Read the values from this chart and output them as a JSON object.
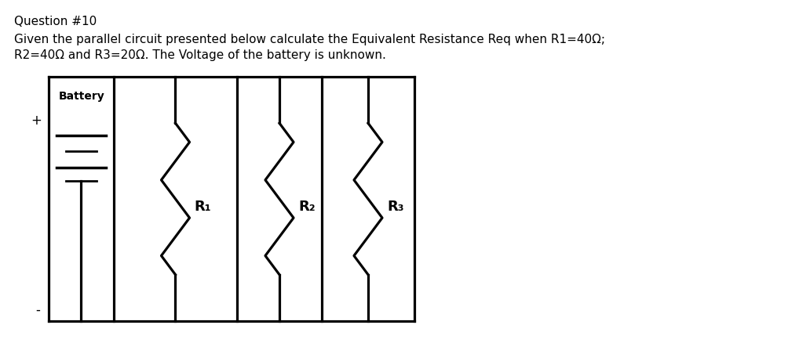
{
  "title": "Question #10",
  "body_line1": "Given the parallel circuit presented below calculate the Equivalent Resistance Req when R1=40Ω;",
  "body_line2": "R2=40Ω and R3=20Ω. The Voltage of the battery is unknown.",
  "background_color": "#ffffff",
  "battery_label": "Battery",
  "r1_label": "R₁",
  "r2_label": "R₂",
  "r3_label": "R₃",
  "plus_label": "+",
  "minus_label": "-",
  "lw": 1.8,
  "res_amp": 0.09,
  "n_zags": 4
}
